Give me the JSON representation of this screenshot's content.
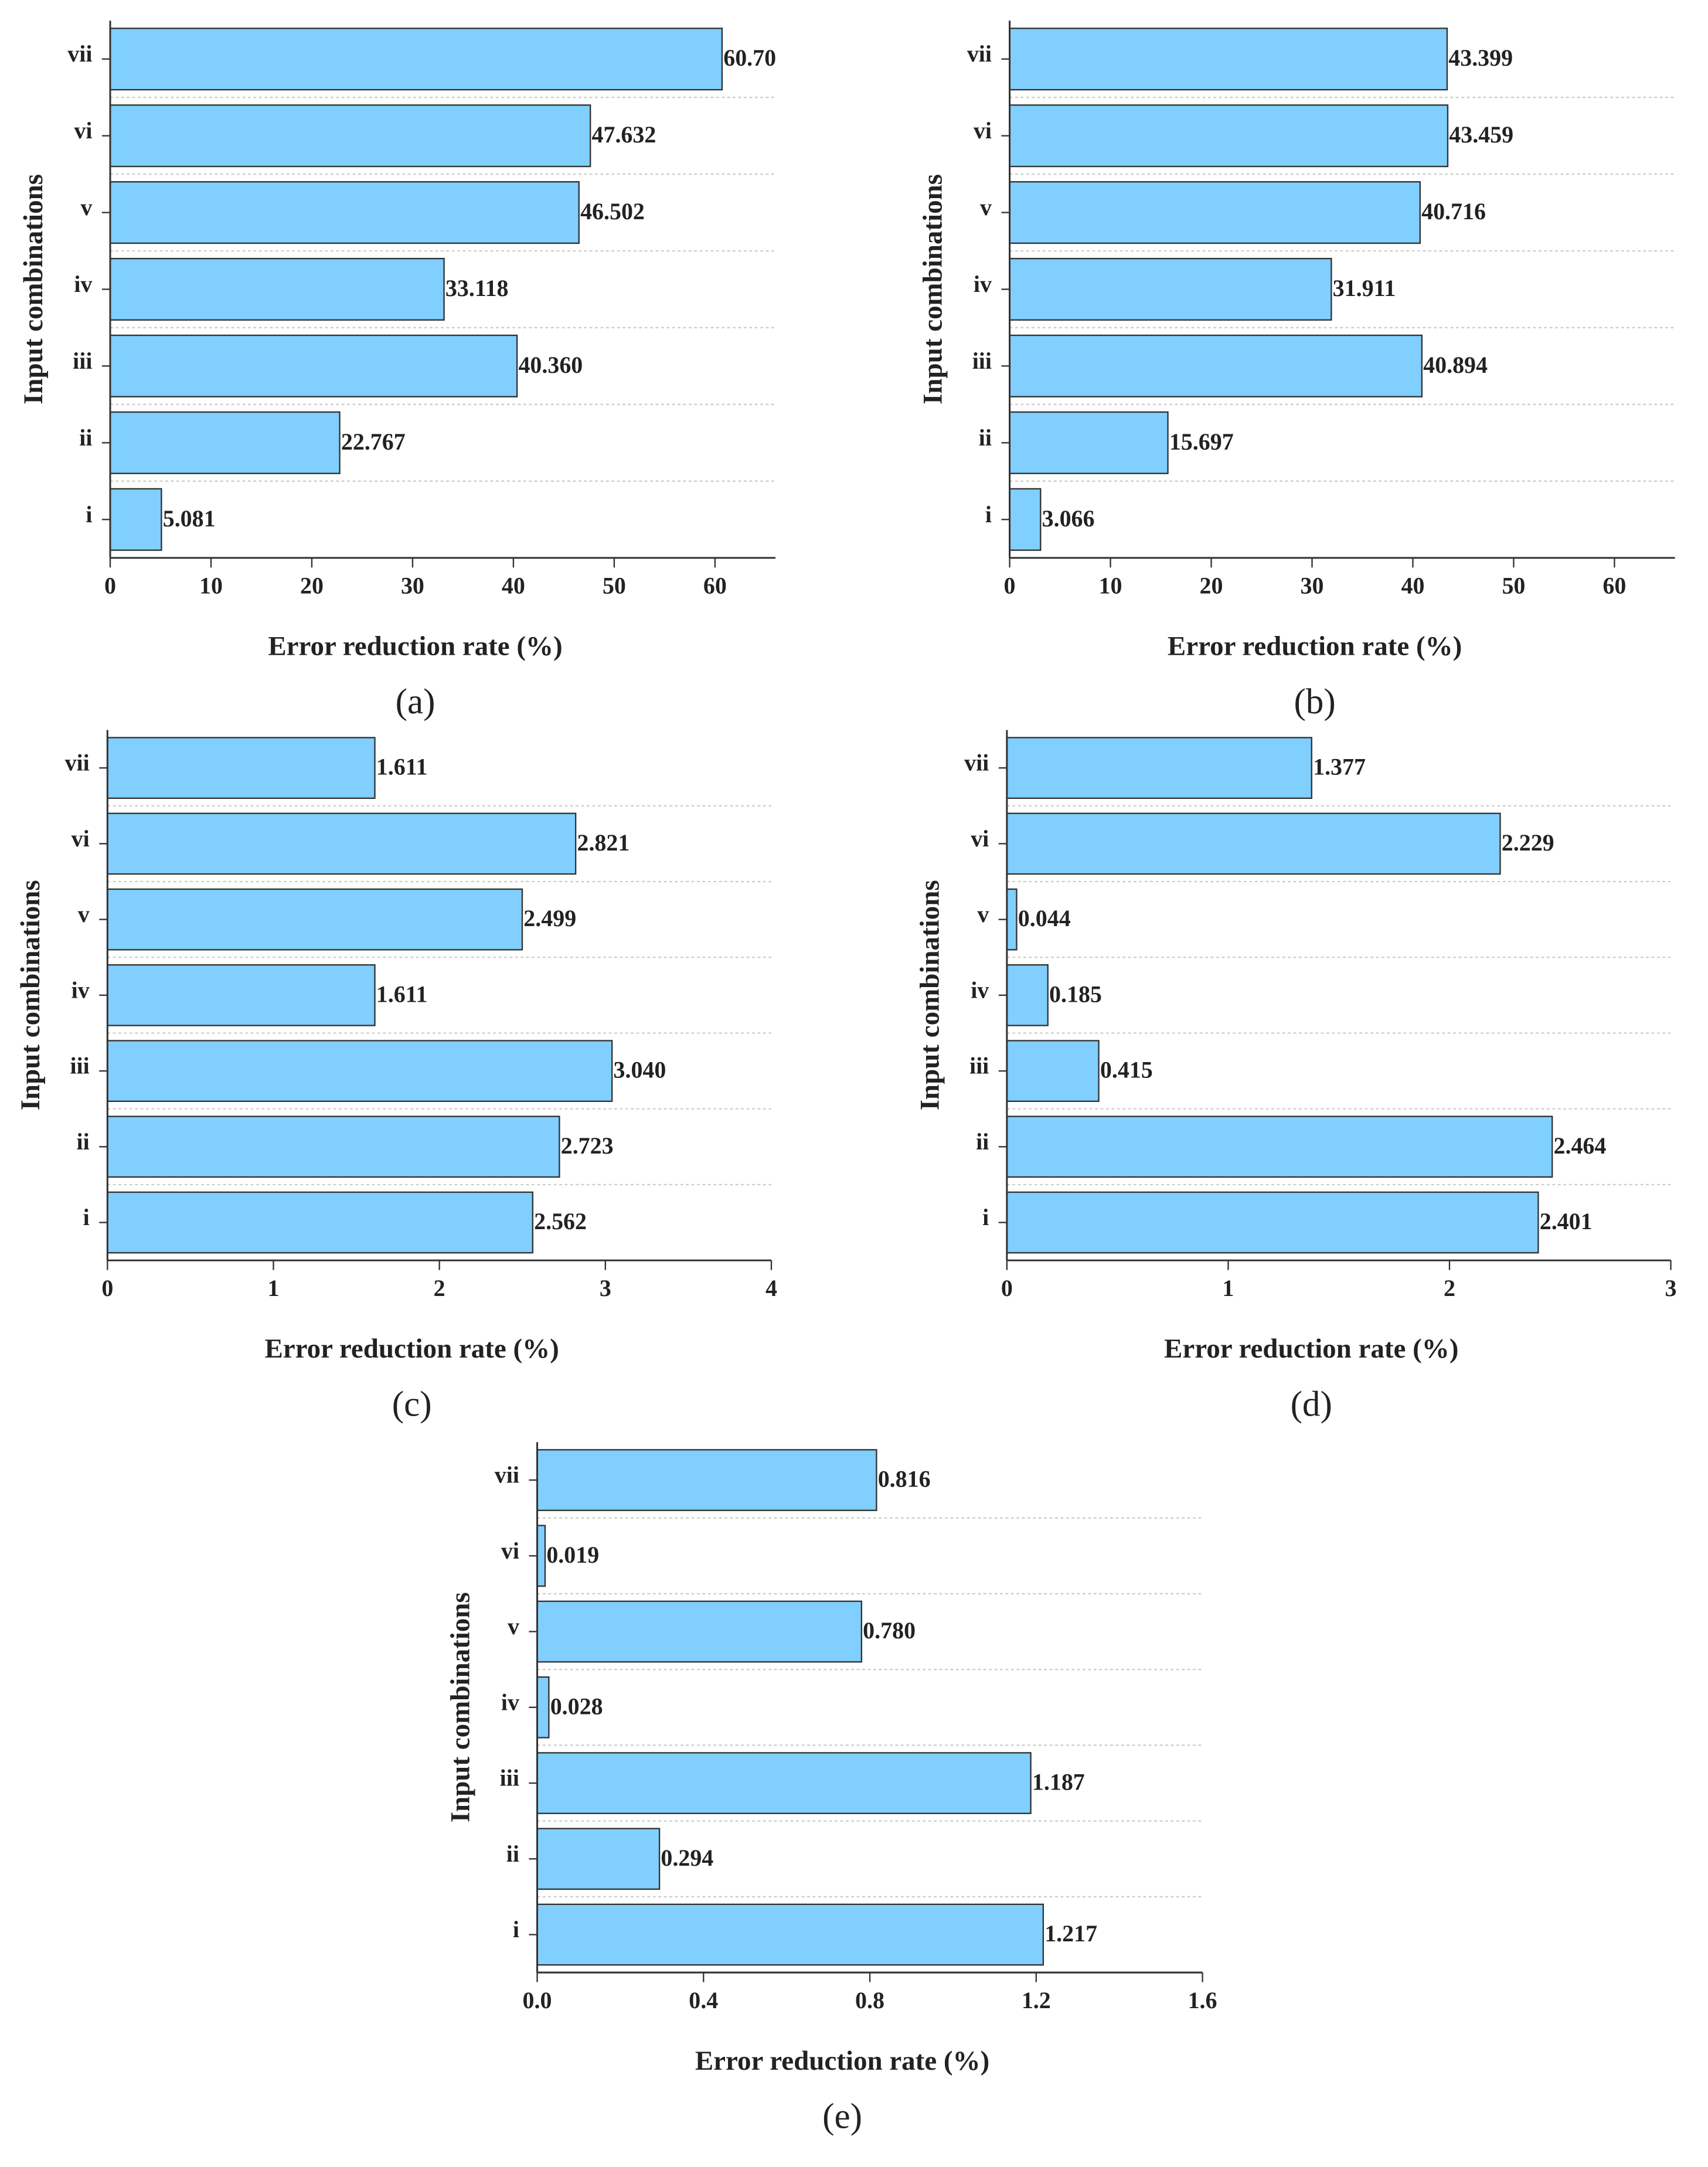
{
  "chart_data": [
    {
      "type": "bar",
      "orientation": "horizontal",
      "label": "(a)",
      "xlabel": "Error reduction rate (%)",
      "ylabel": "Input combinations",
      "categories": [
        "i",
        "ii",
        "iii",
        "iv",
        "v",
        "vi",
        "vii"
      ],
      "values": [
        5.081,
        22.767,
        40.36,
        33.118,
        46.502,
        47.632,
        60.7
      ],
      "value_labels": [
        "5.081",
        "22.767",
        "40.360",
        "33.118",
        "46.502",
        "47.632",
        "60.70"
      ],
      "color": "#80cfff",
      "xlim": [
        0,
        66
      ],
      "xticks": [
        0,
        10,
        20,
        30,
        40,
        50,
        60
      ],
      "grid": true
    },
    {
      "type": "bar",
      "orientation": "horizontal",
      "label": "(b)",
      "xlabel": "Error reduction rate (%)",
      "ylabel": "Input combinations",
      "categories": [
        "i",
        "ii",
        "iii",
        "iv",
        "v",
        "vi",
        "vii"
      ],
      "values": [
        3.066,
        15.697,
        40.894,
        31.911,
        40.716,
        43.459,
        43.399
      ],
      "value_labels": [
        "3.066",
        "15.697",
        "40.894",
        "31.911",
        "40.716",
        "43.459",
        "43.399"
      ],
      "color": "#80cfff",
      "xlim": [
        0,
        66
      ],
      "xticks": [
        0,
        10,
        20,
        30,
        40,
        50,
        60
      ],
      "grid": true
    },
    {
      "type": "bar",
      "orientation": "horizontal",
      "label": "(c)",
      "xlabel": "Error reduction rate (%)",
      "ylabel": "Input combinations",
      "categories": [
        "i",
        "ii",
        "iii",
        "iv",
        "v",
        "vi",
        "vii"
      ],
      "values": [
        2.562,
        2.723,
        3.04,
        1.611,
        2.499,
        2.821,
        1.611
      ],
      "value_labels": [
        "2.562",
        "2.723",
        "3.040",
        "1.611",
        "2.499",
        "2.821",
        "1.611"
      ],
      "color": "#80cfff",
      "xlim": [
        0,
        4
      ],
      "xticks": [
        0,
        1,
        2,
        3,
        4
      ],
      "grid": true
    },
    {
      "type": "bar",
      "orientation": "horizontal",
      "label": "(d)",
      "xlabel": "Error reduction rate (%)",
      "ylabel": "Input combinations",
      "categories": [
        "i",
        "ii",
        "iii",
        "iv",
        "v",
        "vi",
        "vii"
      ],
      "values": [
        2.401,
        2.464,
        0.415,
        0.185,
        0.044,
        2.229,
        1.377
      ],
      "value_labels": [
        "2.401",
        "2.464",
        "0.415",
        "0.185",
        "0.044",
        "2.229",
        "1.377"
      ],
      "color": "#80cfff",
      "xlim": [
        0,
        3
      ],
      "xticks": [
        0,
        1,
        2,
        3
      ],
      "grid": true
    },
    {
      "type": "bar",
      "orientation": "horizontal",
      "label": "(e)",
      "xlabel": "Error reduction rate (%)",
      "ylabel": "Input combinations",
      "categories": [
        "i",
        "ii",
        "iii",
        "iv",
        "v",
        "vi",
        "vii"
      ],
      "values": [
        1.217,
        0.294,
        1.187,
        0.028,
        0.78,
        0.019,
        0.816
      ],
      "value_labels": [
        "1.217",
        "0.294",
        "1.187",
        "0.028",
        "0.780",
        "0.019",
        "0.816"
      ],
      "color": "#80cfff",
      "xlim": [
        0,
        1.6
      ],
      "xticks": [
        {
          "value": 0,
          "label": "0.0"
        },
        0.4,
        0.8,
        1.2,
        1.6
      ],
      "grid": true
    }
  ]
}
